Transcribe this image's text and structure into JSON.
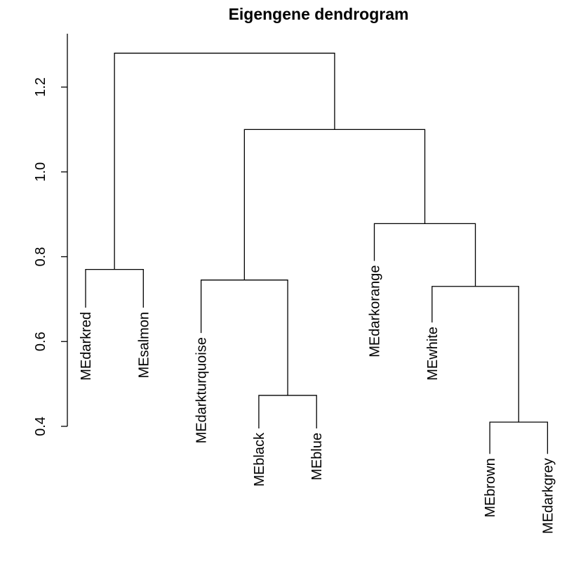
{
  "chart_data": {
    "type": "dendrogram",
    "title": "Eigengene dendrogram",
    "ylabel": "",
    "xlabel": "",
    "yticks": [
      0.4,
      0.6,
      0.8,
      1.0,
      1.2
    ],
    "ytick_labels": [
      "0.4",
      "0.6",
      "0.8",
      "1.0",
      "1.2"
    ],
    "ylim": [
      0.4,
      1.3
    ],
    "leaves": [
      {
        "label": "MEdarkred",
        "label_top": 0.68
      },
      {
        "label": "MEsalmon",
        "label_top": 0.68
      },
      {
        "label": "MEdarkturquoise",
        "label_top": 0.62
      },
      {
        "label": "MEblack",
        "label_top": 0.395
      },
      {
        "label": "MEblue",
        "label_top": 0.395
      },
      {
        "label": "MEdarkorange",
        "label_top": 0.79
      },
      {
        "label": "MEwhite",
        "label_top": 0.645
      },
      {
        "label": "MEbrown",
        "label_top": 0.335
      },
      {
        "label": "MEdarkgrey",
        "label_top": 0.335
      }
    ],
    "merges": [
      {
        "left": 3,
        "right": 4,
        "height": 0.473
      },
      {
        "left": 7,
        "right": 8,
        "height": 0.41
      },
      {
        "left": 6,
        "right": "m2",
        "height": 0.73
      },
      {
        "left": 0,
        "right": 1,
        "height": 0.77
      },
      {
        "left": 2,
        "right": "m1",
        "height": 0.745
      },
      {
        "left": 5,
        "right": "m3",
        "height": 0.878
      },
      {
        "left": "m5",
        "right": "m6",
        "height": 1.1
      },
      {
        "left": "m4",
        "right": "m7",
        "height": 1.28
      }
    ]
  }
}
